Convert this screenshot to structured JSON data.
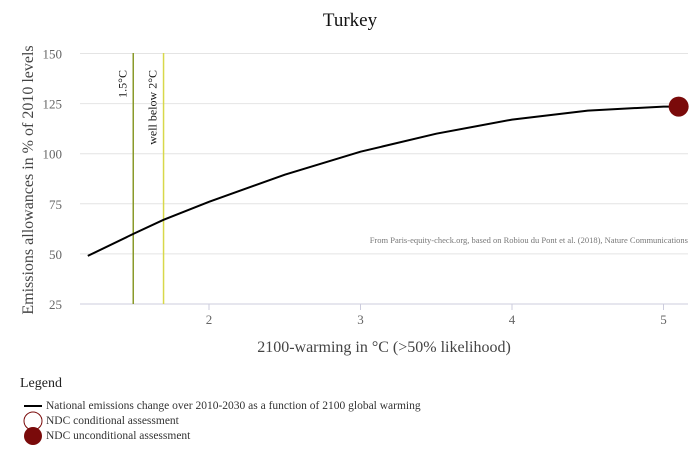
{
  "chart_data": {
    "type": "line",
    "title": "Turkey",
    "xlabel": "2100-warming in °C (>50% likelihood)",
    "ylabel": "Emissions allowances in % of 2010 levels",
    "xlim": [
      1.15,
      5.2
    ],
    "ylim": [
      25,
      150
    ],
    "x_ticks": [
      "2",
      "3",
      "4",
      "5"
    ],
    "y_ticks": [
      "25",
      "50",
      "75",
      "100",
      "125",
      "150"
    ],
    "grid": "horizontal",
    "series": [
      {
        "name": "National emissions change over 2010-2030 as a function of 2100 global warming",
        "x": [
          1.2,
          1.5,
          1.7,
          2.0,
          2.5,
          3.0,
          3.5,
          4.0,
          4.5,
          5.0,
          5.1
        ],
        "y": [
          49,
          60,
          67,
          76,
          89.5,
          101,
          110,
          117,
          121.5,
          123.5,
          123.5
        ]
      }
    ],
    "reference_lines": [
      {
        "label": "1.5°C",
        "x": 1.5,
        "color": "#8a9a2a"
      },
      {
        "label": "well below 2°C",
        "x": 1.7,
        "color": "#d8d84a"
      }
    ],
    "points": [
      {
        "name": "NDC unconditional assessment",
        "x": 5.1,
        "y": 123.5,
        "color": "#7a0a0a"
      }
    ],
    "annotation": "From Paris-equity-check.org, based on Robiou du Pont et al. (2018), Nature Communications",
    "legend": {
      "title": "Legend",
      "position": "bottom-left",
      "entries": [
        "National emissions change over 2010-2030 as a function of 2100 global warming",
        "NDC conditional assessment",
        "NDC unconditional assessment"
      ]
    }
  }
}
